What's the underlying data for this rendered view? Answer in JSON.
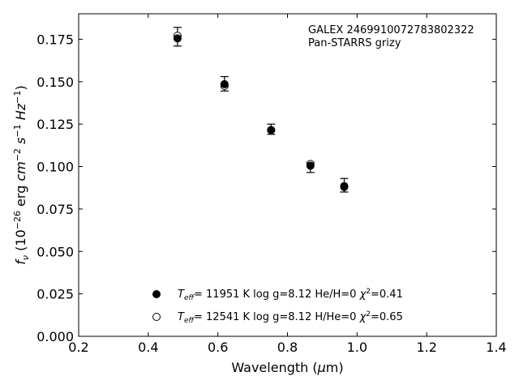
{
  "chart_data": {
    "type": "scatter",
    "annotations": [
      "GALEX 2469910072783802322",
      "Pan-STARRS grizy"
    ],
    "xlabel": "Wavelength (μm)",
    "ylabel": "f_ν (10^-26 erg cm^-2 s^-1 Hz^-1)",
    "xlim": [
      0.2,
      1.4
    ],
    "ylim": [
      0.0,
      0.19
    ],
    "xticks": [
      0.2,
      0.4,
      0.6,
      0.8,
      1.0,
      1.2,
      1.4
    ],
    "xtick_labels": [
      "0.2",
      "0.4",
      "0.6",
      "0.8",
      "1.0",
      "1.2",
      "1.4"
    ],
    "yticks": [
      0.0,
      0.025,
      0.05,
      0.075,
      0.1,
      0.125,
      0.15,
      0.175
    ],
    "ytick_labels": [
      "0.000",
      "0.025",
      "0.050",
      "0.075",
      "0.100",
      "0.125",
      "0.150",
      "0.175"
    ],
    "grid": false,
    "legend_position": "bottom-center",
    "observed": {
      "x": [
        0.484,
        0.619,
        0.753,
        0.866,
        0.963
      ],
      "y": [
        0.176,
        0.149,
        0.122,
        0.101,
        0.0875
      ],
      "yerr_low": [
        0.005,
        0.0045,
        0.003,
        0.0045,
        0.0025
      ],
      "yerr_high": [
        0.006,
        0.004,
        0.003,
        0.0015,
        0.0055
      ]
    },
    "series": [
      {
        "name": "T_eff= 11951 K  log g=8.12  He/H=0  χ²=0.41",
        "marker": "filled",
        "x": [
          0.484,
          0.619,
          0.753,
          0.866,
          0.963
        ],
        "y": [
          0.1755,
          0.1485,
          0.1215,
          0.1005,
          0.088
        ]
      },
      {
        "name": "T_eff= 12541 K  log g=8.12  H/He=0  χ²=0.65",
        "marker": "open",
        "x": [
          0.484,
          0.619,
          0.753,
          0.866,
          0.963
        ],
        "y": [
          0.177,
          0.1475,
          0.1215,
          0.1015,
          0.0885
        ]
      }
    ]
  }
}
